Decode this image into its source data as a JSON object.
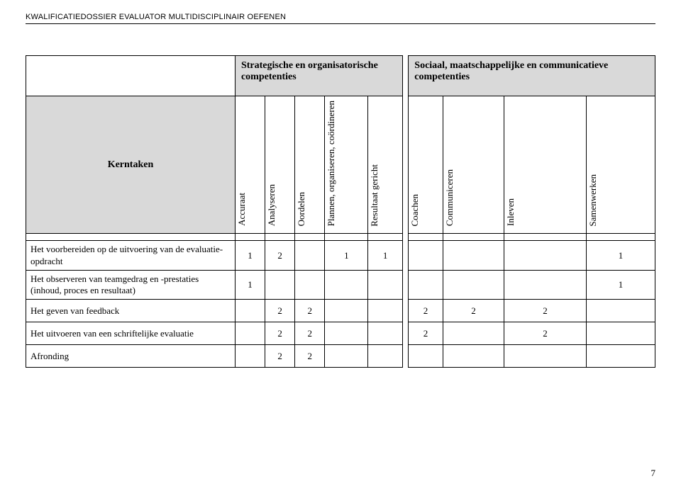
{
  "header": "KWALIFICATIEDOSSIER EVALUATOR MULTIDISCIPLINAIR OEFENEN",
  "group1": "Strategische en organisatorische competenties",
  "group2": "Sociaal, maatschappelijke en communicatieve competenties",
  "kerntaken_label": "Kerntaken",
  "columns": {
    "accuraat": "Accuraat",
    "analyseren": "Analyseren",
    "oordelen": "Oordelen",
    "plannen": "Plannen,\norganiseren,\ncoördineren",
    "resultaat": "Resultaat\ngericht",
    "coachen": "Coachen",
    "communiceren": "Communiceren",
    "inleven": "Inleven",
    "samenwerken": "Samenwerken"
  },
  "rows": [
    {
      "label": "Het voorbereiden op de uitvoering van de evaluatie-opdracht",
      "vals": [
        "1",
        "2",
        "",
        "1",
        "1",
        "",
        "",
        "",
        "1"
      ]
    },
    {
      "label": "Het observeren van teamgedrag en -prestaties (inhoud, proces en resultaat)",
      "vals": [
        "1",
        "",
        "",
        "",
        "",
        "",
        "",
        "",
        "1"
      ]
    },
    {
      "label": "Het geven van feedback",
      "vals": [
        "",
        "2",
        "2",
        "",
        "",
        "2",
        "2",
        "2",
        ""
      ]
    },
    {
      "label": "Het uitvoeren van een schriftelijke evaluatie",
      "vals": [
        "",
        "2",
        "2",
        "",
        "",
        "2",
        "",
        "2",
        ""
      ]
    },
    {
      "label": "Afronding",
      "vals": [
        "",
        "2",
        "2",
        "",
        "",
        "",
        "",
        "",
        ""
      ]
    }
  ],
  "page_number": "7",
  "colors": {
    "header_bg": "#d9d9d9",
    "border": "#000000",
    "text": "#000000",
    "page_bg": "#ffffff"
  },
  "fonts": {
    "header_family": "Arial",
    "body_family": "Garamond",
    "header_size_pt": 8,
    "body_size_pt": 10,
    "group_size_pt": 11
  }
}
